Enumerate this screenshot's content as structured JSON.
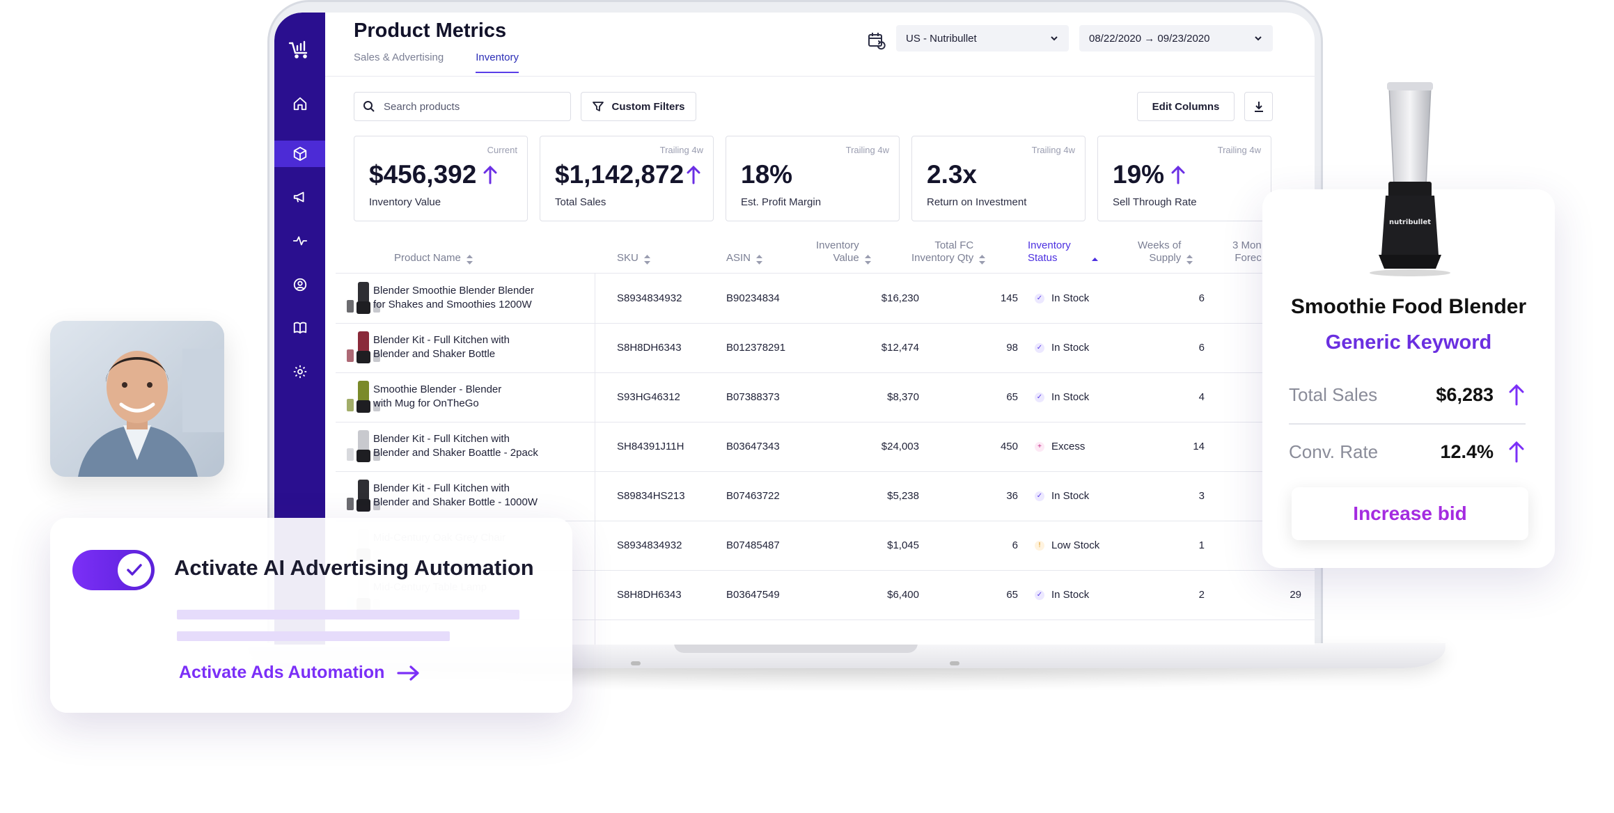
{
  "dashboard": {
    "title": "Product Metrics",
    "tabs": [
      {
        "label": "Sales & Advertising",
        "active": false
      },
      {
        "label": "Inventory",
        "active": true
      }
    ],
    "account_select": "US - Nutribullet",
    "date_range": {
      "start": "08/22/2020",
      "arrow": "→",
      "end": "09/23/2020"
    },
    "search": {
      "placeholder": "Search products"
    },
    "custom_filters_label": "Custom Filters",
    "edit_columns_label": "Edit Columns",
    "sidebar_icons": [
      "logo-cart-chart-icon",
      "home-icon",
      "box-icon",
      "megaphone-icon",
      "pulse-icon",
      "user-circle-icon",
      "book-icon",
      "gear-icon"
    ],
    "accent_color": "#2a0f8f",
    "kpis": [
      {
        "tag": "Current",
        "value": "$456,392",
        "label": "Inventory Value",
        "trend": "up"
      },
      {
        "tag": "",
        "value": "$1,142,872",
        "label": "Total Sales",
        "trend": "up"
      },
      {
        "tag": "Trailing 4w",
        "value": "18%",
        "label": "Est. Profit Margin",
        "trend": ""
      },
      {
        "tag": "Trailing 4w",
        "value": "2.3x",
        "label": "Return on Investment",
        "trend": ""
      },
      {
        "tag": "Trailing 4w",
        "value": "19%",
        "label": "Sell Through Rate",
        "trend": "up"
      }
    ],
    "trailing_tag": "Trailing 4w",
    "columns": {
      "product_name": "Product Name",
      "sku": "SKU",
      "asin": "ASIN",
      "inv_value_1": "Inventory",
      "inv_value_2": "Value",
      "fc_qty_1": "Total FC",
      "fc_qty_2": "Inventory Qty",
      "inv_status_1": "Inventory",
      "inv_status_2": "Status",
      "weeks_1": "Weeks of",
      "weeks_2": "Supply",
      "forecast_1": "3 Mon",
      "forecast_2": "Forec"
    },
    "rows": [
      {
        "name_1": "Blender Smoothie Blender Blender",
        "name_2": "for Shakes and Smoothies 1200W",
        "sku": "S8934834932",
        "asin": "B90234834",
        "value": "$16,230",
        "qty": "145",
        "status": "In Stock",
        "weeks": "6",
        "forecast": ""
      },
      {
        "name_1": "Blender Kit - Full Kitchen with",
        "name_2": "Blender and Shaker Bottle",
        "sku": "S8H8DH6343",
        "asin": "B012378291",
        "value": "$12,474",
        "qty": "98",
        "status": "In Stock",
        "weeks": "6",
        "forecast": ""
      },
      {
        "name_1": "Smoothie Blender - Blender",
        "name_2": "with Mug for OnTheGo",
        "sku": "S93HG46312",
        "asin": "B07388373",
        "value": "$8,370",
        "qty": "65",
        "status": "In Stock",
        "weeks": "4",
        "forecast": ""
      },
      {
        "name_1": "Blender Kit - Full Kitchen with",
        "name_2": "Blender and Shaker Boattle - 2pack",
        "sku": "SH84391J11H",
        "asin": "B03647343",
        "value": "$24,003",
        "qty": "450",
        "status": "Excess",
        "weeks": "14",
        "forecast": ""
      },
      {
        "name_1": "Blender Kit - Full Kitchen with",
        "name_2": "Blender and Shaker Bottle - 1000W",
        "sku": "S89834HS213",
        "asin": "B07463722",
        "value": "$5,238",
        "qty": "36",
        "status": "In Stock",
        "weeks": "3",
        "forecast": ""
      },
      {
        "name_1": "Mid-Century Oak Grey Chair",
        "name_2": "",
        "sku": "S8934834932",
        "asin": "B07485487",
        "value": "$1,045",
        "qty": "6",
        "status": "Low Stock",
        "weeks": "1",
        "forecast": ""
      },
      {
        "name_1": "Mid-Century Table Lamp",
        "name_2": "",
        "sku": "S8H8DH6343",
        "asin": "B03647549",
        "value": "$6,400",
        "qty": "65",
        "status": "In Stock",
        "weeks": "2",
        "forecast": "29"
      }
    ]
  },
  "automation_card": {
    "title": "Activate AI Advertising Automation",
    "link": "Activate Ads Automation",
    "toggle_on": true
  },
  "product_card": {
    "title": "Smoothie Food Blender",
    "keyword": "Generic Keyword",
    "brand_on_product": "nutribullet",
    "metrics": [
      {
        "label": "Total Sales",
        "value": "$6,283",
        "trend": "up"
      },
      {
        "label": "Conv. Rate",
        "value": "12.4%",
        "trend": "up"
      }
    ],
    "button": "Increase bid"
  }
}
